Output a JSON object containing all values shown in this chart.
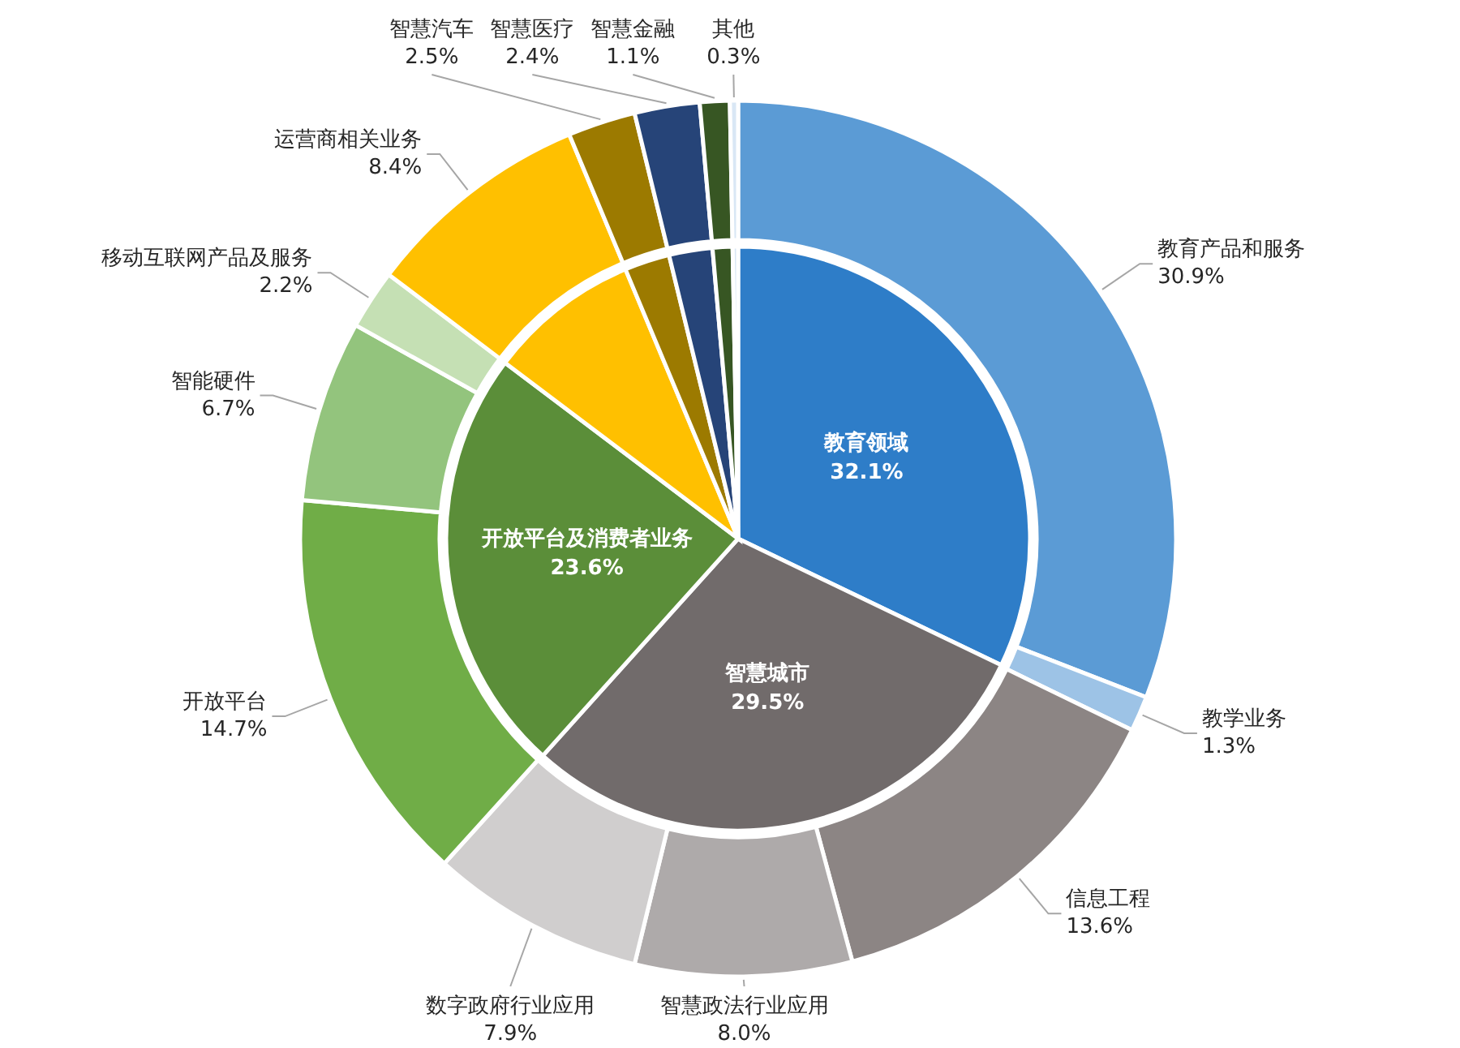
{
  "chart_data": [
    {
      "type": "pie",
      "categories": [
        "教育领域",
        "智慧城市",
        "开放平台及消费者业务",
        null,
        null,
        null,
        null,
        null
      ],
      "values": [
        32.1,
        29.5,
        23.6,
        8.4,
        2.5,
        2.4,
        1.1,
        0.3
      ],
      "value_labels": [
        "32.1%",
        "29.5%",
        "23.6%",
        null,
        null,
        null,
        null,
        null
      ],
      "colors": [
        "#2e7dc8",
        "#716b6b",
        "#5b8e39",
        "#ffc000",
        "#9c7a00",
        "#264478",
        "#375623",
        "#d9e7f5"
      ]
    },
    {
      "type": "donut",
      "categories": [
        "教育产品和服务",
        "教学业务",
        "信息工程",
        "智慧政法行业应用",
        "数字政府行业应用",
        "开放平台",
        "智能硬件",
        "移动互联网产品及服务",
        "运营商相关业务",
        "智慧汽车",
        "智慧医疗",
        "智慧金融",
        "其他"
      ],
      "values": [
        30.9,
        1.3,
        13.6,
        8.0,
        7.9,
        14.7,
        6.7,
        2.2,
        8.4,
        2.5,
        2.4,
        1.1,
        0.3
      ],
      "value_labels": [
        "30.9%",
        "1.3%",
        "13.6%",
        "8.0%",
        "7.9%",
        "14.7%",
        "6.7%",
        "2.2%",
        "8.4%",
        "2.5%",
        "2.4%",
        "1.1%",
        "0.3%"
      ],
      "colors": [
        "#5b9bd5",
        "#9dc3e6",
        "#8c8584",
        "#aeaaaa",
        "#d0cece",
        "#70ad47",
        "#93c47d",
        "#c5e0b4",
        "#ffc000",
        "#9c7a00",
        "#264478",
        "#375623",
        "#d9e7f5"
      ]
    }
  ]
}
